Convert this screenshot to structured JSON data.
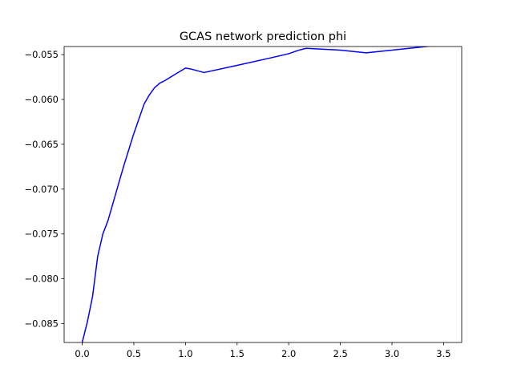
{
  "chart_data": {
    "type": "line",
    "title": "GCAS network prediction phi",
    "xlabel": "",
    "ylabel": "",
    "xlim": [
      -0.175,
      3.675
    ],
    "ylim": [
      -0.0871,
      -0.0541
    ],
    "x_ticks": [
      0.0,
      0.5,
      1.0,
      1.5,
      2.0,
      2.5,
      3.0,
      3.5
    ],
    "x_tick_labels": [
      "0.0",
      "0.5",
      "1.0",
      "1.5",
      "2.0",
      "2.5",
      "3.0",
      "3.5"
    ],
    "y_ticks": [
      -0.085,
      -0.08,
      -0.075,
      -0.07,
      -0.065,
      -0.06,
      -0.055
    ],
    "y_tick_labels": [
      "−0.085",
      "−0.080",
      "−0.075",
      "−0.070",
      "−0.065",
      "−0.060",
      "−0.055"
    ],
    "grid": false,
    "series": [
      {
        "color": "#0000ff",
        "x": [
          0.0,
          0.05,
          0.1,
          0.15,
          0.2,
          0.25,
          0.3,
          0.4,
          0.5,
          0.6,
          0.65,
          0.7,
          0.75,
          0.8,
          0.9,
          1.0,
          1.05,
          1.18,
          1.5,
          1.85,
          2.0,
          2.1,
          2.17,
          2.5,
          2.75,
          3.0,
          3.25,
          3.5
        ],
        "y": [
          -0.0871,
          -0.0848,
          -0.082,
          -0.0775,
          -0.075,
          -0.0735,
          -0.0715,
          -0.0675,
          -0.0638,
          -0.0605,
          -0.0595,
          -0.0587,
          -0.0582,
          -0.0579,
          -0.0572,
          -0.0565,
          -0.0566,
          -0.057,
          -0.0562,
          -0.0553,
          -0.0549,
          -0.0545,
          -0.0543,
          -0.0545,
          -0.0548,
          -0.0545,
          -0.0542,
          -0.0539
        ]
      }
    ]
  }
}
